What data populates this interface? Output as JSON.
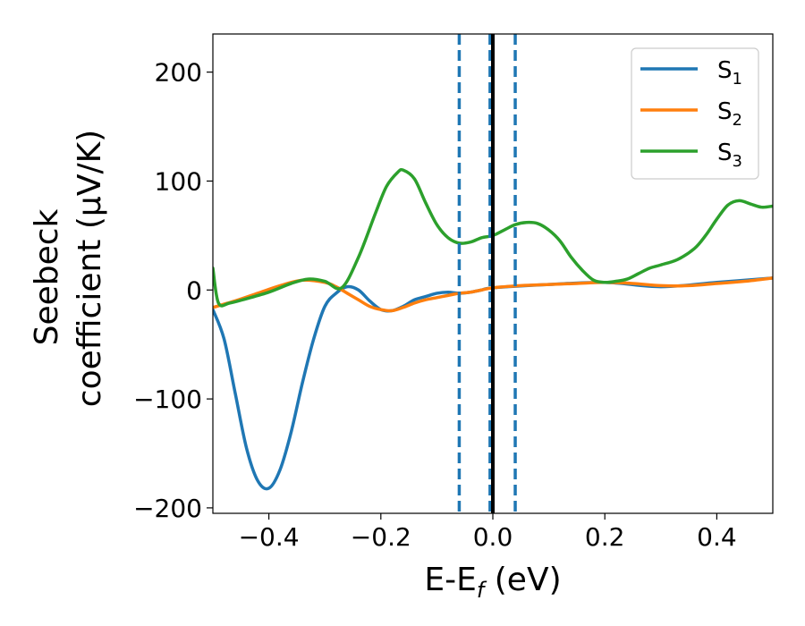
{
  "chart_data": {
    "type": "line",
    "xlabel": "E-E",
    "xlabel_sub": "f",
    "xlabel_unit": " (eV)",
    "ylabel_line1": "Seebeck",
    "ylabel_line2": "coefficient  (μV/K)",
    "xlim": [
      -0.5,
      0.5
    ],
    "ylim": [
      -205,
      235
    ],
    "x_ticks": [
      -0.4,
      -0.2,
      0.0,
      0.2,
      0.4
    ],
    "x_tick_labels": [
      "−0.4",
      "−0.2",
      "0.0",
      "0.2",
      "0.4"
    ],
    "y_ticks": [
      -200,
      -100,
      0,
      100,
      200
    ],
    "y_tick_labels": [
      "−200",
      "−100",
      "0",
      "100",
      "200"
    ],
    "grid": false,
    "legend_position": "top-right",
    "vertical_lines": [
      {
        "x": -0.06,
        "style": "dashed",
        "color": "#1f77b4"
      },
      {
        "x": -0.005,
        "style": "dashed",
        "color": "#1f77b4"
      },
      {
        "x": 0.04,
        "style": "dashed",
        "color": "#1f77b4"
      },
      {
        "x": 0.0,
        "style": "solid",
        "color": "#000000"
      }
    ],
    "series": [
      {
        "name": "S",
        "name_sub": "1",
        "color": "#1f77b4",
        "x": [
          -0.5,
          -0.48,
          -0.46,
          -0.44,
          -0.42,
          -0.4,
          -0.38,
          -0.36,
          -0.34,
          -0.32,
          -0.3,
          -0.28,
          -0.26,
          -0.24,
          -0.22,
          -0.2,
          -0.18,
          -0.16,
          -0.14,
          -0.12,
          -0.1,
          -0.08,
          -0.06,
          -0.04,
          -0.02,
          0.0,
          0.1,
          0.2,
          0.3,
          0.4,
          0.5
        ],
        "y": [
          -18,
          -45,
          -95,
          -145,
          -175,
          -182,
          -165,
          -130,
          -85,
          -45,
          -15,
          -3,
          3,
          0,
          -10,
          -18,
          -19,
          -15,
          -9,
          -6,
          -3,
          -2,
          -3,
          -2,
          0,
          2,
          5,
          7,
          3,
          7,
          11
        ]
      },
      {
        "name": "S",
        "name_sub": "2",
        "color": "#ff7f0e",
        "x": [
          -0.5,
          -0.46,
          -0.42,
          -0.38,
          -0.34,
          -0.3,
          -0.28,
          -0.26,
          -0.24,
          -0.22,
          -0.2,
          -0.18,
          -0.16,
          -0.14,
          -0.12,
          -0.1,
          -0.08,
          -0.06,
          -0.04,
          -0.02,
          0.0,
          0.05,
          0.1,
          0.15,
          0.2,
          0.25,
          0.3,
          0.35,
          0.4,
          0.45,
          0.5
        ],
        "y": [
          -16,
          -10,
          -3,
          4,
          9,
          7,
          3,
          -3,
          -9,
          -15,
          -18,
          -19,
          -16,
          -12,
          -9,
          -7,
          -5,
          -3,
          -2,
          0,
          2,
          4,
          5,
          6,
          7,
          6,
          4,
          4,
          6,
          8,
          11
        ]
      },
      {
        "name": "S",
        "name_sub": "3",
        "color": "#2ca02c",
        "x": [
          -0.5,
          -0.49,
          -0.47,
          -0.44,
          -0.4,
          -0.36,
          -0.33,
          -0.3,
          -0.27,
          -0.24,
          -0.21,
          -0.19,
          -0.17,
          -0.16,
          -0.14,
          -0.12,
          -0.1,
          -0.08,
          -0.06,
          -0.04,
          -0.02,
          0.0,
          0.02,
          0.04,
          0.06,
          0.08,
          0.1,
          0.12,
          0.14,
          0.16,
          0.18,
          0.2,
          0.22,
          0.24,
          0.26,
          0.28,
          0.3,
          0.33,
          0.36,
          0.38,
          0.4,
          0.42,
          0.44,
          0.46,
          0.48,
          0.5
        ],
        "y": [
          20,
          -12,
          -12,
          -8,
          -2,
          6,
          10,
          8,
          2,
          30,
          70,
          95,
          108,
          110,
          102,
          80,
          60,
          48,
          43,
          44,
          48,
          50,
          55,
          60,
          62,
          61,
          55,
          45,
          30,
          18,
          9,
          7,
          8,
          10,
          15,
          20,
          23,
          28,
          38,
          50,
          65,
          78,
          82,
          79,
          76,
          77
        ]
      }
    ]
  }
}
